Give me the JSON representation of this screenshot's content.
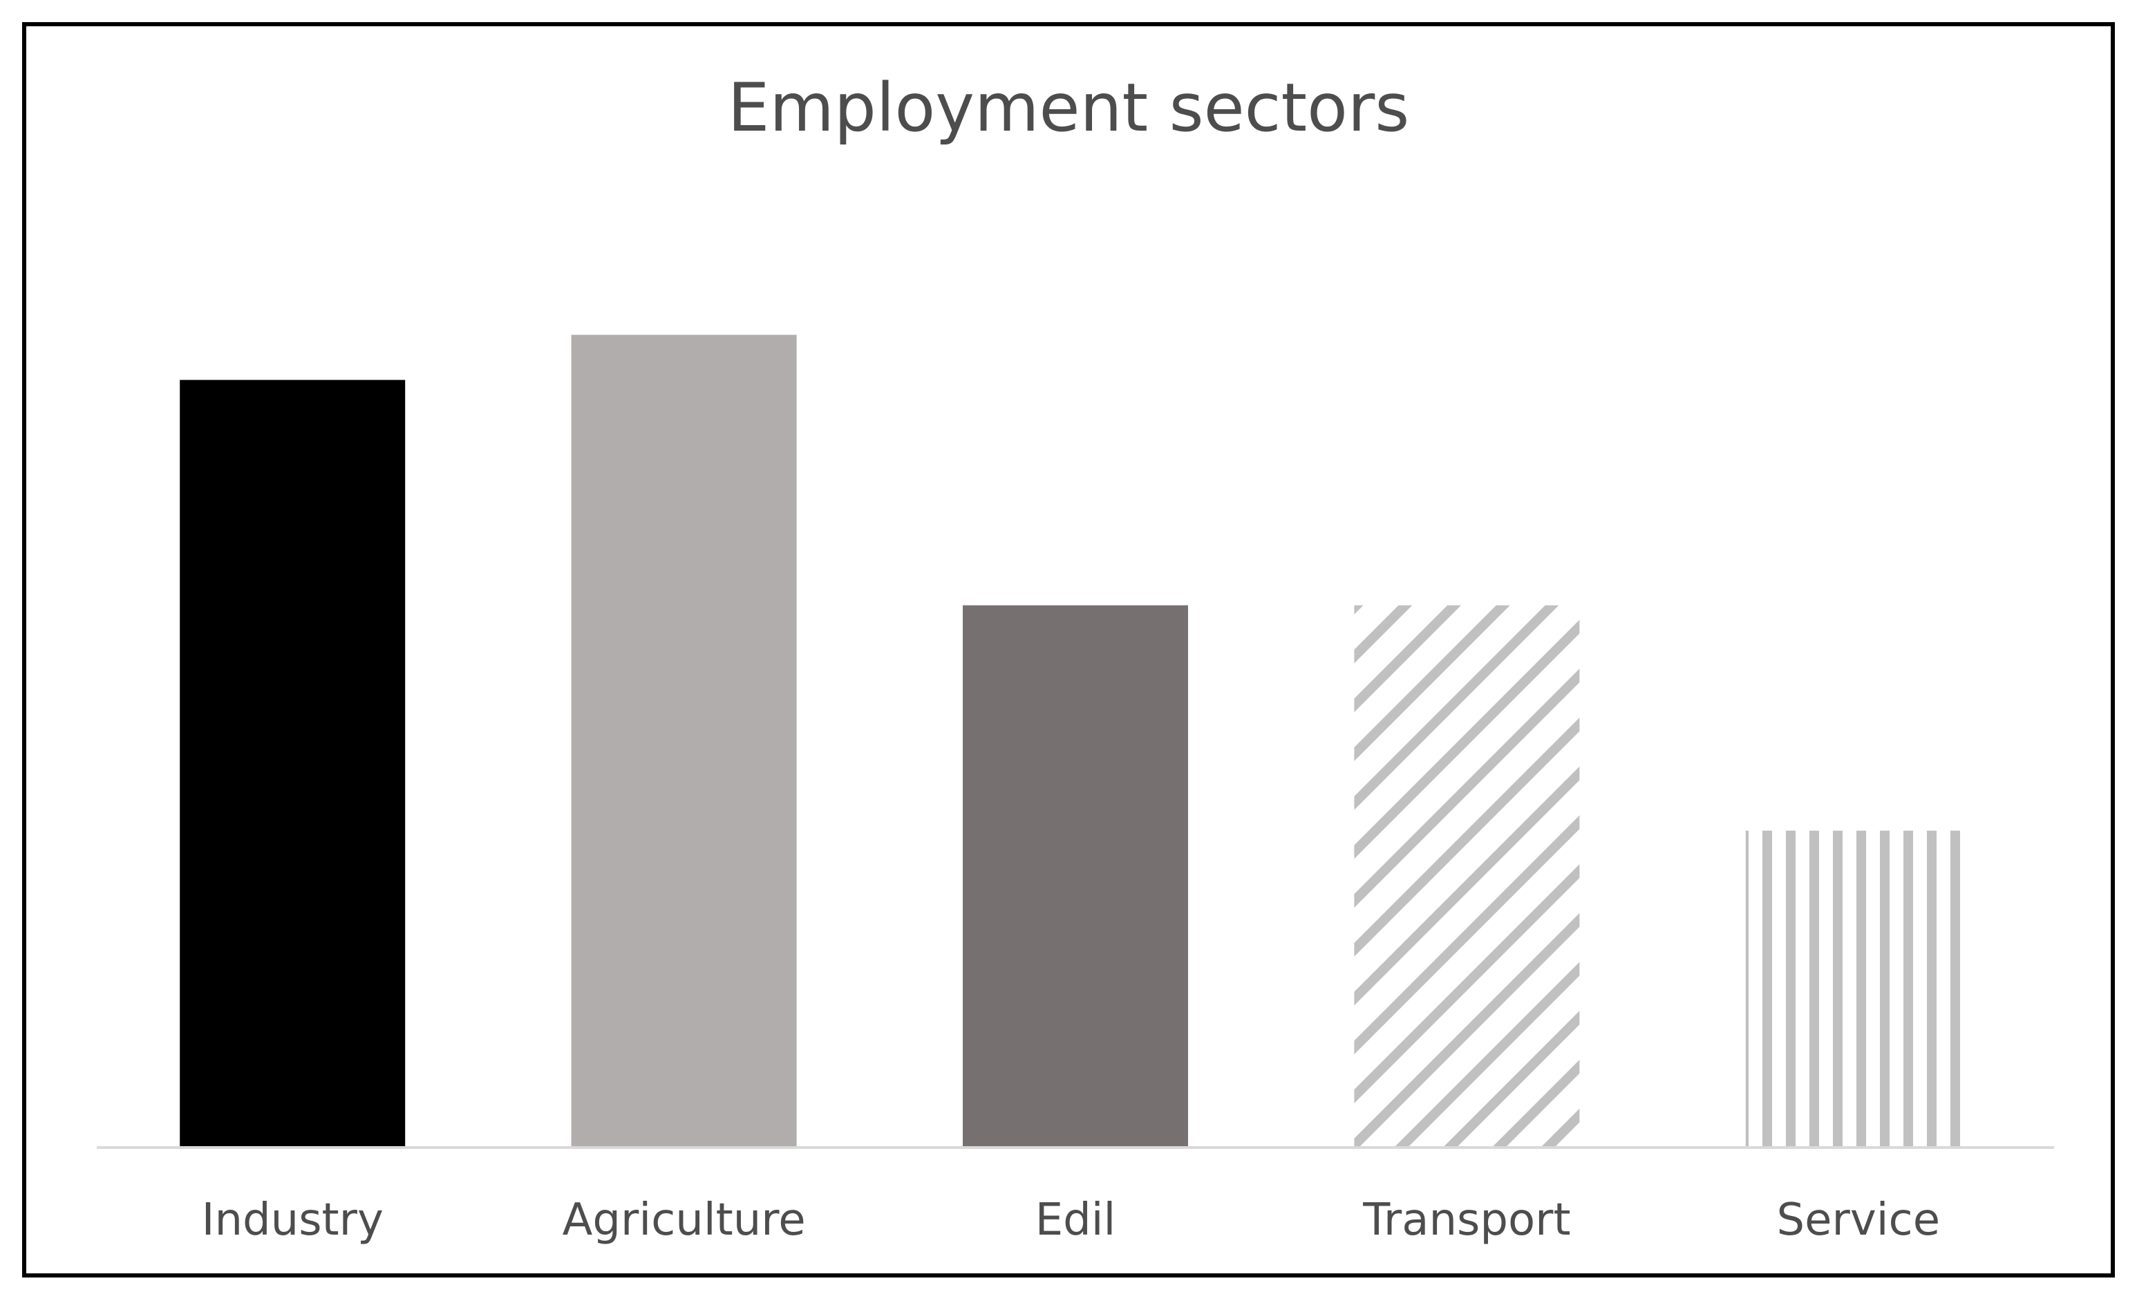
{
  "chart_data": {
    "type": "bar",
    "title": "Employment sectors",
    "xlabel": "",
    "ylabel": "",
    "categories": [
      "Industry",
      "Agriculture",
      "Edil",
      "Transport",
      "Service"
    ],
    "values": [
      85,
      90,
      60,
      60,
      35
    ],
    "ylim": [
      0,
      100
    ],
    "grid": false,
    "legend": "none",
    "bar_styles": [
      {
        "fill": "solid",
        "color": "#000000"
      },
      {
        "fill": "solid",
        "color": "#b0adac"
      },
      {
        "fill": "solid",
        "color": "#767170"
      },
      {
        "fill": "diagonal-stripes",
        "color": "#c0c0c0"
      },
      {
        "fill": "vertical-stripes",
        "color": "#c0c0c0"
      }
    ],
    "colors": {
      "axis": "#d9d9d9",
      "text": "#4d4d4d",
      "frame": "#000000"
    }
  }
}
